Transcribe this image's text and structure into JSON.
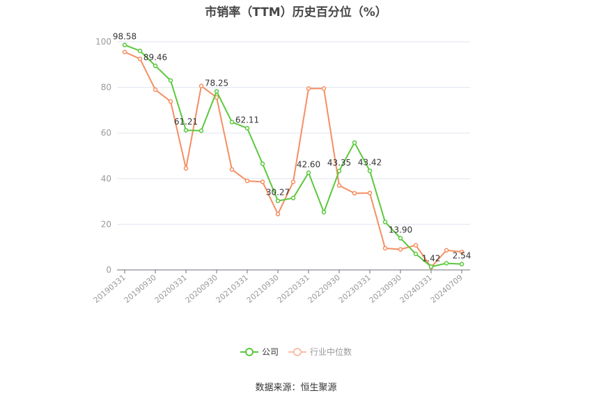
{
  "title": "市销率（TTM）历史百分位（%）",
  "legend": [
    {
      "label": "公司",
      "color": "#5ac83b"
    },
    {
      "label": "行业中位数",
      "color": "#f58e61"
    }
  ],
  "source": "数据来源：恒生聚源",
  "chart_data": {
    "type": "line",
    "title": "市销率（TTM）历史百分位（%）",
    "xlabel": "",
    "ylabel": "",
    "ylim": [
      0,
      100
    ],
    "yticks": [
      0,
      20,
      40,
      60,
      80,
      100
    ],
    "grid": true,
    "legend_position": "bottom",
    "x_tick_labels": [
      "20190331",
      "20190930",
      "20200331",
      "20200930",
      "20210331",
      "20210930",
      "20220331",
      "20220930",
      "20230331",
      "20230930",
      "20240331",
      "20240709"
    ],
    "x": [
      "20190331",
      "20190630",
      "20190930",
      "20191231",
      "20200331",
      "20200630",
      "20200930",
      "20201231",
      "20210331",
      "20210630",
      "20210930",
      "20211231",
      "20220331",
      "20220630",
      "20220930",
      "20221231",
      "20230331",
      "20230630",
      "20230930",
      "20231231",
      "20240331",
      "20240630",
      "20240709"
    ],
    "series": [
      {
        "name": "公司",
        "color": "#5ac83b",
        "values": [
          98.58,
          96.0,
          89.46,
          83.0,
          61.21,
          61.0,
          78.25,
          64.8,
          62.11,
          46.5,
          30.27,
          31.5,
          42.6,
          25.3,
          43.35,
          55.8,
          43.42,
          21.0,
          13.9,
          7.0,
          1.42,
          2.9,
          2.54
        ],
        "labels": {
          "0": "98.58",
          "2": "89.46",
          "4": "61.21",
          "6": "78.25",
          "8": "62.11",
          "10": "30.27",
          "12": "42.60",
          "14": "43.35",
          "16": "43.42",
          "18": "13.90",
          "20": "1.42",
          "22": "2.54"
        }
      },
      {
        "name": "行业中位数",
        "color": "#f58e61",
        "values": [
          95.5,
          92.5,
          79.0,
          73.8,
          44.5,
          80.6,
          75.6,
          44.0,
          39.0,
          38.6,
          24.5,
          38.6,
          79.5,
          79.5,
          37.0,
          33.6,
          33.7,
          9.5,
          9.0,
          10.8,
          1.2,
          8.6,
          7.9
        ]
      }
    ]
  }
}
